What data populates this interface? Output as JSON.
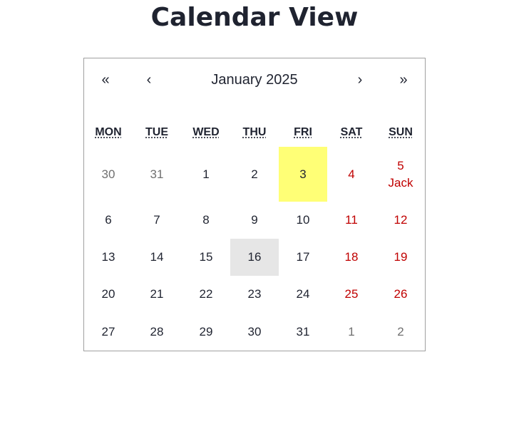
{
  "page": {
    "title": "Calendar View"
  },
  "calendar": {
    "nav": {
      "prev_year": "«",
      "prev_month": "‹",
      "label": "January 2025",
      "next_month": "›",
      "next_year": "»"
    },
    "weekdays": [
      "MON",
      "TUE",
      "WED",
      "THU",
      "FRI",
      "SAT",
      "SUN"
    ],
    "weeks": [
      [
        {
          "day": "30",
          "kind": "neighbor"
        },
        {
          "day": "31",
          "kind": "neighbor"
        },
        {
          "day": "1",
          "kind": "normal"
        },
        {
          "day": "2",
          "kind": "normal"
        },
        {
          "day": "3",
          "kind": "selected"
        },
        {
          "day": "4",
          "kind": "weekend"
        },
        {
          "day": "5",
          "kind": "weekend",
          "event": "Jack"
        }
      ],
      [
        {
          "day": "6",
          "kind": "normal"
        },
        {
          "day": "7",
          "kind": "normal"
        },
        {
          "day": "8",
          "kind": "normal"
        },
        {
          "day": "9",
          "kind": "normal"
        },
        {
          "day": "10",
          "kind": "normal"
        },
        {
          "day": "11",
          "kind": "weekend"
        },
        {
          "day": "12",
          "kind": "weekend"
        }
      ],
      [
        {
          "day": "13",
          "kind": "normal"
        },
        {
          "day": "14",
          "kind": "normal"
        },
        {
          "day": "15",
          "kind": "normal"
        },
        {
          "day": "16",
          "kind": "today"
        },
        {
          "day": "17",
          "kind": "normal"
        },
        {
          "day": "18",
          "kind": "weekend"
        },
        {
          "day": "19",
          "kind": "weekend"
        }
      ],
      [
        {
          "day": "20",
          "kind": "normal"
        },
        {
          "day": "21",
          "kind": "normal"
        },
        {
          "day": "22",
          "kind": "normal"
        },
        {
          "day": "23",
          "kind": "normal"
        },
        {
          "day": "24",
          "kind": "normal"
        },
        {
          "day": "25",
          "kind": "weekend"
        },
        {
          "day": "26",
          "kind": "weekend"
        }
      ],
      [
        {
          "day": "27",
          "kind": "normal"
        },
        {
          "day": "28",
          "kind": "normal"
        },
        {
          "day": "29",
          "kind": "normal"
        },
        {
          "day": "30",
          "kind": "normal"
        },
        {
          "day": "31",
          "kind": "normal"
        },
        {
          "day": "1",
          "kind": "neighbor"
        },
        {
          "day": "2",
          "kind": "neighbor"
        }
      ]
    ]
  },
  "colors": {
    "text": "#1f2330",
    "weekend": "#c00000",
    "neighbor": "#707070",
    "selected_bg": "#ffff76",
    "today_bg": "#e6e6e6",
    "border": "#a0a0a0"
  }
}
